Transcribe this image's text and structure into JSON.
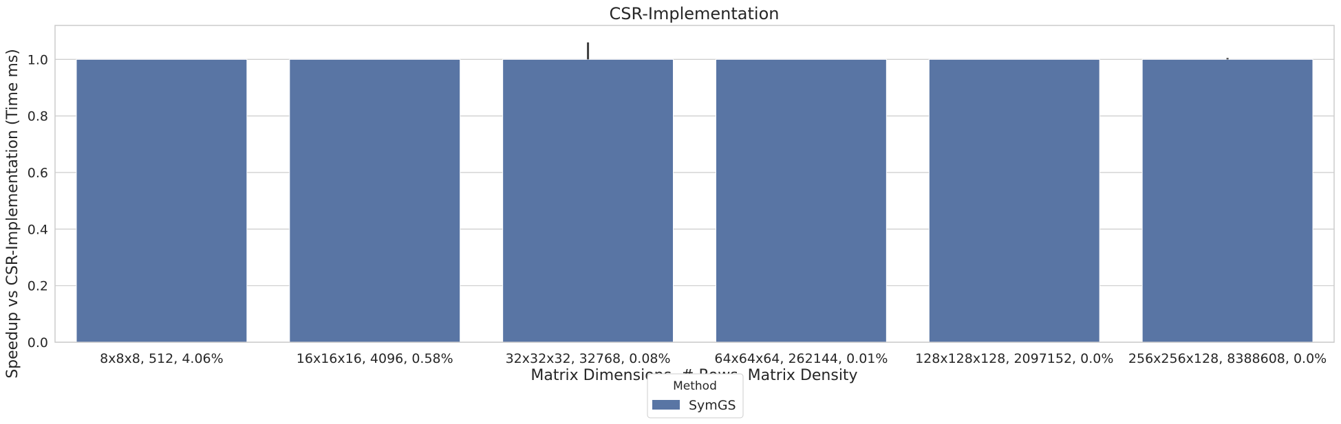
{
  "chart_data": {
    "type": "bar",
    "title": "CSR-Implementation",
    "xlabel": "Matrix Dimensions, # Rows, Matrix Density",
    "ylabel": "Speedup vs CSR-Implementation (Time ms)",
    "categories": [
      "8x8x8, 512, 4.06%",
      "16x16x16, 4096, 0.58%",
      "32x32x32, 32768, 0.08%",
      "64x64x64, 262144, 0.01%",
      "128x128x128, 2097152, 0.0%",
      "256x256x128, 8388608, 0.0%"
    ],
    "series": [
      {
        "name": "SymGS",
        "color": "#5975a4",
        "values": [
          1.0,
          1.0,
          1.0,
          1.0,
          1.0,
          1.0
        ],
        "error_upper": [
          1.0,
          1.0,
          1.06,
          1.0,
          1.0,
          1.005
        ],
        "error_lower": [
          1.0,
          1.0,
          1.0,
          1.0,
          1.0,
          1.0
        ]
      }
    ],
    "ylim": [
      0,
      1.12
    ],
    "yticks": [
      0.0,
      0.2,
      0.4,
      0.6,
      0.8,
      1.0
    ],
    "ytick_labels": [
      "0.0",
      "0.2",
      "0.4",
      "0.6",
      "0.8",
      "1.0"
    ],
    "grid": "horizontal",
    "legend": {
      "title": "Method",
      "placement": "bottom-center"
    }
  }
}
